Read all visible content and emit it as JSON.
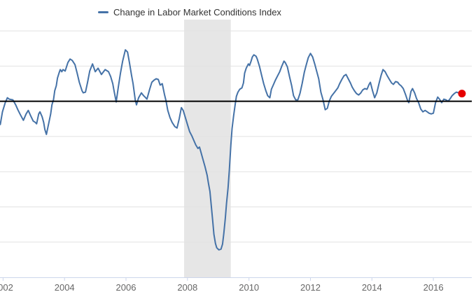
{
  "legend": {
    "label": "Change in Labor Market Conditions Index"
  },
  "colors": {
    "series_line": "#4572a7",
    "last_point_marker": "#e60000",
    "zero_line": "#000000",
    "gridline": "#e2e2e2",
    "recession_band": "#e6e6e6",
    "axis_line": "#ccd6eb",
    "tick_label": "#666666",
    "legend_text": "#333333",
    "background": "#ffffff"
  },
  "chart_data": {
    "type": "line",
    "title": "",
    "xlabel": "",
    "ylabel": "",
    "legend_position": "top",
    "grid": true,
    "y_axis_labels_visible": false,
    "xlim": [
      2001.9,
      2017.25
    ],
    "ylim": [
      -50,
      23.2
    ],
    "y_gridline_values": [
      20,
      10,
      -10,
      -20,
      -30,
      -40
    ],
    "zero_line_value": 0,
    "x_tick_years": [
      2002,
      2004,
      2006,
      2008,
      2010,
      2012,
      2014,
      2016
    ],
    "x_tick_labels": [
      "2002",
      "2004",
      "2006",
      "2008",
      "2010",
      "2012",
      "2014",
      "2016"
    ],
    "recession_band": {
      "start_year": 2007.89,
      "end_year": 2009.41
    },
    "last_point": {
      "year": 2016.93,
      "value": 2.2
    },
    "series": [
      {
        "name": "Change in Labor Market Conditions Index",
        "color": "#4572a7",
        "points": [
          [
            2001.91,
            -6.6
          ],
          [
            2001.98,
            -3.0
          ],
          [
            2002.07,
            -0.4
          ],
          [
            2002.14,
            1.0
          ],
          [
            2002.2,
            0.6
          ],
          [
            2002.32,
            0.4
          ],
          [
            2002.41,
            -1.0
          ],
          [
            2002.48,
            -2.4
          ],
          [
            2002.55,
            -3.6
          ],
          [
            2002.66,
            -5.4
          ],
          [
            2002.75,
            -3.6
          ],
          [
            2002.82,
            -2.6
          ],
          [
            2002.89,
            -4.0
          ],
          [
            2002.98,
            -5.6
          ],
          [
            2003.05,
            -6.0
          ],
          [
            2003.09,
            -6.4
          ],
          [
            2003.16,
            -3.6
          ],
          [
            2003.2,
            -3.0
          ],
          [
            2003.27,
            -4.4
          ],
          [
            2003.32,
            -6.0
          ],
          [
            2003.36,
            -8.0
          ],
          [
            2003.41,
            -9.4
          ],
          [
            2003.5,
            -5.6
          ],
          [
            2003.55,
            -3.6
          ],
          [
            2003.59,
            -1.0
          ],
          [
            2003.64,
            0.4
          ],
          [
            2003.68,
            3.0
          ],
          [
            2003.73,
            4.4
          ],
          [
            2003.77,
            6.6
          ],
          [
            2003.82,
            8.0
          ],
          [
            2003.86,
            9.0
          ],
          [
            2003.91,
            8.4
          ],
          [
            2003.95,
            9.0
          ],
          [
            2004.02,
            8.6
          ],
          [
            2004.11,
            11.0
          ],
          [
            2004.18,
            12.0
          ],
          [
            2004.25,
            11.6
          ],
          [
            2004.34,
            10.4
          ],
          [
            2004.41,
            8.0
          ],
          [
            2004.48,
            5.4
          ],
          [
            2004.57,
            3.0
          ],
          [
            2004.61,
            2.4
          ],
          [
            2004.68,
            2.6
          ],
          [
            2004.75,
            5.4
          ],
          [
            2004.82,
            8.6
          ],
          [
            2004.91,
            10.6
          ],
          [
            2005.0,
            8.4
          ],
          [
            2005.09,
            9.4
          ],
          [
            2005.2,
            7.6
          ],
          [
            2005.32,
            9.0
          ],
          [
            2005.43,
            8.4
          ],
          [
            2005.5,
            7.0
          ],
          [
            2005.57,
            5.0
          ],
          [
            2005.61,
            3.0
          ],
          [
            2005.68,
            -0.2
          ],
          [
            2005.75,
            4.0
          ],
          [
            2005.82,
            8.0
          ],
          [
            2005.89,
            11.4
          ],
          [
            2005.98,
            14.6
          ],
          [
            2006.05,
            14.0
          ],
          [
            2006.11,
            11.0
          ],
          [
            2006.18,
            7.4
          ],
          [
            2006.23,
            5.0
          ],
          [
            2006.3,
            0.4
          ],
          [
            2006.34,
            -1.0
          ],
          [
            2006.41,
            1.0
          ],
          [
            2006.5,
            2.4
          ],
          [
            2006.57,
            1.6
          ],
          [
            2006.64,
            1.0
          ],
          [
            2006.68,
            0.6
          ],
          [
            2006.77,
            3.4
          ],
          [
            2006.84,
            5.4
          ],
          [
            2006.91,
            6.0
          ],
          [
            2006.98,
            6.4
          ],
          [
            2007.05,
            6.2
          ],
          [
            2007.11,
            4.6
          ],
          [
            2007.18,
            5.0
          ],
          [
            2007.25,
            2.0
          ],
          [
            2007.3,
            0.2
          ],
          [
            2007.36,
            -2.6
          ],
          [
            2007.43,
            -4.6
          ],
          [
            2007.5,
            -6.0
          ],
          [
            2007.59,
            -7.2
          ],
          [
            2007.66,
            -7.6
          ],
          [
            2007.73,
            -5.0
          ],
          [
            2007.8,
            -1.8
          ],
          [
            2007.86,
            -2.6
          ],
          [
            2007.93,
            -4.6
          ],
          [
            2008.0,
            -6.6
          ],
          [
            2008.07,
            -8.6
          ],
          [
            2008.14,
            -9.8
          ],
          [
            2008.2,
            -11.0
          ],
          [
            2008.27,
            -12.4
          ],
          [
            2008.34,
            -13.4
          ],
          [
            2008.39,
            -13.0
          ],
          [
            2008.43,
            -14.2
          ],
          [
            2008.5,
            -16.4
          ],
          [
            2008.57,
            -18.6
          ],
          [
            2008.64,
            -21.0
          ],
          [
            2008.68,
            -23.2
          ],
          [
            2008.73,
            -25.6
          ],
          [
            2008.77,
            -29.4
          ],
          [
            2008.82,
            -33.8
          ],
          [
            2008.86,
            -37.8
          ],
          [
            2008.91,
            -40.4
          ],
          [
            2008.95,
            -41.6
          ],
          [
            2009.02,
            -42.2
          ],
          [
            2009.09,
            -42.0
          ],
          [
            2009.14,
            -40.6
          ],
          [
            2009.18,
            -37.6
          ],
          [
            2009.23,
            -33.2
          ],
          [
            2009.27,
            -29.0
          ],
          [
            2009.32,
            -24.6
          ],
          [
            2009.36,
            -19.6
          ],
          [
            2009.41,
            -12.4
          ],
          [
            2009.45,
            -7.8
          ],
          [
            2009.5,
            -4.2
          ],
          [
            2009.55,
            -1.0
          ],
          [
            2009.59,
            1.4
          ],
          [
            2009.64,
            2.6
          ],
          [
            2009.7,
            3.4
          ],
          [
            2009.77,
            3.8
          ],
          [
            2009.82,
            5.2
          ],
          [
            2009.86,
            8.0
          ],
          [
            2009.91,
            9.4
          ],
          [
            2009.98,
            10.6
          ],
          [
            2010.02,
            10.2
          ],
          [
            2010.07,
            11.4
          ],
          [
            2010.11,
            12.6
          ],
          [
            2010.16,
            13.2
          ],
          [
            2010.23,
            12.8
          ],
          [
            2010.27,
            12.0
          ],
          [
            2010.34,
            10.0
          ],
          [
            2010.41,
            7.4
          ],
          [
            2010.48,
            5.0
          ],
          [
            2010.55,
            3.0
          ],
          [
            2010.61,
            1.6
          ],
          [
            2010.68,
            1.0
          ],
          [
            2010.73,
            3.4
          ],
          [
            2010.8,
            4.8
          ],
          [
            2010.86,
            6.0
          ],
          [
            2010.93,
            7.2
          ],
          [
            2011.0,
            8.4
          ],
          [
            2011.07,
            10.0
          ],
          [
            2011.14,
            11.4
          ],
          [
            2011.18,
            11.0
          ],
          [
            2011.25,
            9.8
          ],
          [
            2011.32,
            7.0
          ],
          [
            2011.39,
            4.4
          ],
          [
            2011.45,
            1.6
          ],
          [
            2011.52,
            0.4
          ],
          [
            2011.59,
            0.4
          ],
          [
            2011.66,
            2.2
          ],
          [
            2011.73,
            5.0
          ],
          [
            2011.8,
            8.2
          ],
          [
            2011.86,
            10.2
          ],
          [
            2011.93,
            12.4
          ],
          [
            2012.0,
            13.6
          ],
          [
            2012.07,
            12.6
          ],
          [
            2012.14,
            10.6
          ],
          [
            2012.2,
            8.6
          ],
          [
            2012.27,
            6.4
          ],
          [
            2012.34,
            2.6
          ],
          [
            2012.41,
            0.4
          ],
          [
            2012.48,
            -2.4
          ],
          [
            2012.55,
            -2.0
          ],
          [
            2012.61,
            0.0
          ],
          [
            2012.68,
            1.4
          ],
          [
            2012.75,
            2.2
          ],
          [
            2012.82,
            3.0
          ],
          [
            2012.89,
            3.8
          ],
          [
            2012.95,
            5.0
          ],
          [
            2013.02,
            6.2
          ],
          [
            2013.09,
            7.2
          ],
          [
            2013.16,
            7.6
          ],
          [
            2013.23,
            6.4
          ],
          [
            2013.3,
            5.2
          ],
          [
            2013.36,
            4.0
          ],
          [
            2013.43,
            3.0
          ],
          [
            2013.5,
            2.2
          ],
          [
            2013.57,
            1.8
          ],
          [
            2013.64,
            2.4
          ],
          [
            2013.7,
            3.2
          ],
          [
            2013.77,
            3.6
          ],
          [
            2013.84,
            3.4
          ],
          [
            2013.91,
            4.8
          ],
          [
            2013.95,
            5.4
          ],
          [
            2014.02,
            3.0
          ],
          [
            2014.09,
            1.0
          ],
          [
            2014.16,
            2.4
          ],
          [
            2014.23,
            5.0
          ],
          [
            2014.3,
            7.4
          ],
          [
            2014.36,
            9.0
          ],
          [
            2014.43,
            8.4
          ],
          [
            2014.5,
            7.2
          ],
          [
            2014.57,
            6.2
          ],
          [
            2014.64,
            5.2
          ],
          [
            2014.7,
            4.8
          ],
          [
            2014.77,
            5.6
          ],
          [
            2014.84,
            5.4
          ],
          [
            2014.89,
            4.8
          ],
          [
            2014.95,
            4.4
          ],
          [
            2015.02,
            3.6
          ],
          [
            2015.09,
            2.0
          ],
          [
            2015.16,
            0.2
          ],
          [
            2015.2,
            -0.4
          ],
          [
            2015.27,
            2.8
          ],
          [
            2015.32,
            3.6
          ],
          [
            2015.39,
            2.4
          ],
          [
            2015.45,
            0.8
          ],
          [
            2015.52,
            -0.4
          ],
          [
            2015.59,
            -2.2
          ],
          [
            2015.66,
            -3.0
          ],
          [
            2015.73,
            -2.6
          ],
          [
            2015.8,
            -3.0
          ],
          [
            2015.86,
            -3.4
          ],
          [
            2015.93,
            -3.6
          ],
          [
            2016.0,
            -3.4
          ],
          [
            2016.07,
            -0.4
          ],
          [
            2016.14,
            1.2
          ],
          [
            2016.2,
            0.6
          ],
          [
            2016.27,
            -0.4
          ],
          [
            2016.34,
            0.6
          ],
          [
            2016.41,
            0.4
          ],
          [
            2016.48,
            0.0
          ],
          [
            2016.55,
            0.8
          ],
          [
            2016.61,
            1.6
          ],
          [
            2016.68,
            2.2
          ],
          [
            2016.75,
            2.6
          ],
          [
            2016.82,
            2.4
          ],
          [
            2016.93,
            2.2
          ]
        ]
      }
    ]
  }
}
